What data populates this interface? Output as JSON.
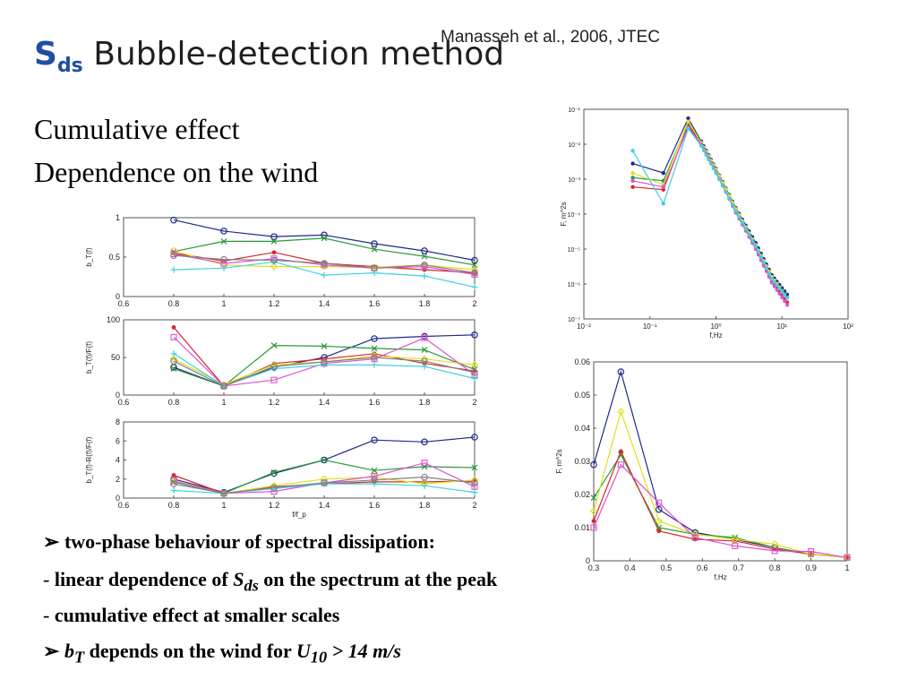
{
  "slide": {
    "title_symbol": "S",
    "title_subscript": "ds",
    "title_text": "Bubble-detection method",
    "citation": "Manasseh et al., 2006, JTEC",
    "heading1": "Cumulative effect",
    "heading2": "Dependence on the wind"
  },
  "bullets": {
    "b1_marker": "➢",
    "b1_text": "two-phase behaviour of spectral dissipation:",
    "b2_dash": "- ",
    "b2_text_a": "linear dependence of",
    "b2_symbol": "S",
    "b2_symbol_sub": "ds",
    "b2_text_b": "on the spectrum at the peak",
    "b3_dash": "- ",
    "b3_text": "cumulative effect at smaller scales",
    "b4_marker": "➢",
    "b4_symbol": "b",
    "b4_symbol_sub": "T",
    "b4_text_a": "depends on the wind for",
    "b4_u": "U",
    "b4_u_sub": "10",
    "b4_text_b": "> 14 m/s"
  },
  "colors": [
    "#1f2a8a",
    "#2a9a3a",
    "#d22a2a",
    "#e0e020",
    "#e050d0",
    "#40d0e0",
    "#808080",
    "#202020"
  ],
  "chart_data": [
    {
      "type": "line",
      "panel": "top-left",
      "ylabel": "b_T(f)",
      "xlim": [
        0.6,
        2
      ],
      "ylim": [
        0,
        1
      ],
      "xticks": [
        "0.6",
        "0.8",
        "1",
        "1.2",
        "1.4",
        "1.6",
        "1.8",
        "2"
      ],
      "yticks": [
        "0",
        "0.5",
        "1"
      ],
      "x": [
        0.8,
        1.0,
        1.2,
        1.4,
        1.6,
        1.8,
        2.0
      ],
      "series": [
        {
          "values": [
            0.97,
            0.83,
            0.76,
            0.78,
            0.67,
            0.58,
            0.46
          ]
        },
        {
          "values": [
            0.57,
            0.7,
            0.7,
            0.74,
            0.6,
            0.51,
            0.4
          ]
        },
        {
          "values": [
            0.55,
            0.45,
            0.56,
            0.42,
            0.38,
            0.34,
            0.3
          ]
        },
        {
          "values": [
            0.58,
            0.4,
            0.38,
            0.38,
            0.37,
            0.4,
            0.34
          ]
        },
        {
          "values": [
            0.54,
            0.42,
            0.48,
            0.4,
            0.36,
            0.38,
            0.28
          ]
        },
        {
          "values": [
            0.34,
            0.36,
            0.44,
            0.27,
            0.3,
            0.26,
            0.12
          ]
        },
        {
          "values": [
            0.52,
            0.47,
            0.46,
            0.42,
            0.36,
            0.4,
            0.3
          ]
        }
      ]
    },
    {
      "type": "line",
      "panel": "middle-left",
      "ylabel": "b_T(f)/F(f)",
      "xlim": [
        0.6,
        2
      ],
      "ylim": [
        0,
        100
      ],
      "xticks": [
        "0.6",
        "0.8",
        "1",
        "1.2",
        "1.4",
        "1.6",
        "1.8",
        "2"
      ],
      "yticks": [
        "0",
        "50",
        "100"
      ],
      "x": [
        0.8,
        1.0,
        1.2,
        1.4,
        1.6,
        1.8,
        2.0
      ],
      "series": [
        {
          "values": [
            37,
            12,
            37,
            50,
            75,
            78,
            80
          ]
        },
        {
          "values": [
            35,
            12,
            66,
            65,
            62,
            60,
            34
          ]
        },
        {
          "values": [
            90,
            12,
            42,
            48,
            55,
            42,
            32
          ]
        },
        {
          "values": [
            48,
            14,
            40,
            44,
            52,
            48,
            40
          ]
        },
        {
          "values": [
            77,
            12,
            20,
            42,
            48,
            76,
            27
          ]
        },
        {
          "values": [
            55,
            12,
            35,
            40,
            40,
            38,
            22
          ]
        },
        {
          "values": [
            45,
            12,
            38,
            44,
            50,
            45,
            30
          ]
        }
      ]
    },
    {
      "type": "line",
      "panel": "bottom-left",
      "ylabel": "b_T(f)-R(f)/F(f)",
      "xlabel": "f/f_p",
      "xlim": [
        0.6,
        2
      ],
      "ylim": [
        0,
        8
      ],
      "xticks": [
        "0.6",
        "0.8",
        "1",
        "1.2",
        "1.4",
        "1.6",
        "1.8",
        "2"
      ],
      "yticks": [
        "0",
        "2",
        "4",
        "6",
        "8"
      ],
      "x": [
        0.8,
        1.0,
        1.2,
        1.4,
        1.6,
        1.8,
        2.0
      ],
      "series": [
        {
          "values": [
            2.0,
            0.6,
            2.6,
            4.0,
            6.1,
            5.9,
            6.4
          ]
        },
        {
          "values": [
            1.7,
            0.5,
            2.7,
            4.0,
            2.9,
            3.3,
            3.2
          ]
        },
        {
          "values": [
            2.4,
            0.5,
            1.2,
            1.5,
            1.7,
            1.7,
            1.8
          ]
        },
        {
          "values": [
            1.8,
            0.5,
            1.3,
            2.0,
            2.2,
            1.5,
            1.9
          ]
        },
        {
          "values": [
            1.8,
            0.5,
            0.7,
            1.6,
            2.3,
            3.7,
            1.2
          ]
        },
        {
          "values": [
            0.8,
            0.5,
            1.0,
            1.5,
            1.5,
            1.3,
            0.6
          ]
        },
        {
          "values": [
            1.5,
            0.5,
            1.1,
            1.6,
            1.9,
            2.2,
            1.6
          ]
        }
      ]
    },
    {
      "type": "line",
      "panel": "top-right",
      "scale": "log-log",
      "xlabel": "f,Hz",
      "ylabel": "F, m^2s",
      "xlim": [
        0.01,
        100
      ],
      "ylim": [
        1e-07,
        0.1
      ],
      "xticks": [
        "10⁻²",
        "10⁻¹",
        "10⁰",
        "10¹",
        "10²"
      ],
      "yticks": [
        "10⁻⁷",
        "10⁻⁶",
        "10⁻⁵",
        "10⁻⁴",
        "10⁻³",
        "10⁻²",
        "10⁻¹"
      ],
      "x": [
        0.055,
        0.16,
        0.38,
        0.6,
        1.0,
        2.0,
        4.0,
        7.0,
        12.0
      ],
      "series": [
        {
          "values": [
            0.0028,
            0.0015,
            0.055,
            0.012,
            0.002,
            0.00015,
            1.5e-05,
            1.8e-06,
            5e-07
          ]
        },
        {
          "values": [
            0.0011,
            0.0009,
            0.04,
            0.011,
            0.0018,
            0.00013,
            1.2e-05,
            1.5e-06,
            4e-07
          ]
        },
        {
          "values": [
            0.0006,
            0.0005,
            0.035,
            0.01,
            0.0017,
            0.00012,
            1.1e-05,
            1.2e-06,
            3e-07
          ]
        },
        {
          "values": [
            0.0015,
            0.0007,
            0.045,
            0.011,
            0.0019,
            0.00014,
            1.3e-05,
            1.6e-06,
            4e-07
          ]
        },
        {
          "values": [
            0.0009,
            0.0006,
            0.03,
            0.01,
            0.0016,
            0.00011,
            1e-05,
            1.1e-06,
            2.5e-07
          ]
        },
        {
          "values": [
            0.0065,
            0.0002,
            0.028,
            0.009,
            0.0015,
            0.00012,
            1.2e-05,
            1.4e-06,
            4e-07
          ]
        }
      ]
    },
    {
      "type": "line",
      "panel": "bottom-right",
      "xlabel": "f,Hz",
      "ylabel": "F, m^2s",
      "xlim": [
        0.3,
        1
      ],
      "ylim": [
        0,
        0.06
      ],
      "xticks": [
        "0.3",
        "0.4",
        "0.5",
        "0.6",
        "0.7",
        "0.8",
        "0.9",
        "1"
      ],
      "yticks": [
        "0",
        "0.01",
        "0.02",
        "0.03",
        "0.04",
        "0.05",
        "0.06"
      ],
      "x": [
        0.3,
        0.375,
        0.48,
        0.58,
        0.69,
        0.8,
        0.9,
        1.0
      ],
      "series": [
        {
          "values": [
            0.029,
            0.057,
            0.0155,
            0.0085,
            0.0065,
            0.004,
            0.002,
            0.001
          ]
        },
        {
          "values": [
            0.019,
            0.032,
            0.01,
            0.008,
            0.007,
            0.004,
            0.002,
            0.001
          ]
        },
        {
          "values": [
            0.012,
            0.033,
            0.009,
            0.0065,
            0.006,
            0.0035,
            0.002,
            0.001
          ]
        },
        {
          "values": [
            0.015,
            0.045,
            0.012,
            0.008,
            0.0065,
            0.005,
            0.002,
            0.001
          ]
        },
        {
          "values": [
            0.01,
            0.029,
            0.0175,
            0.007,
            0.0045,
            0.003,
            0.0028,
            0.001
          ]
        }
      ]
    }
  ]
}
